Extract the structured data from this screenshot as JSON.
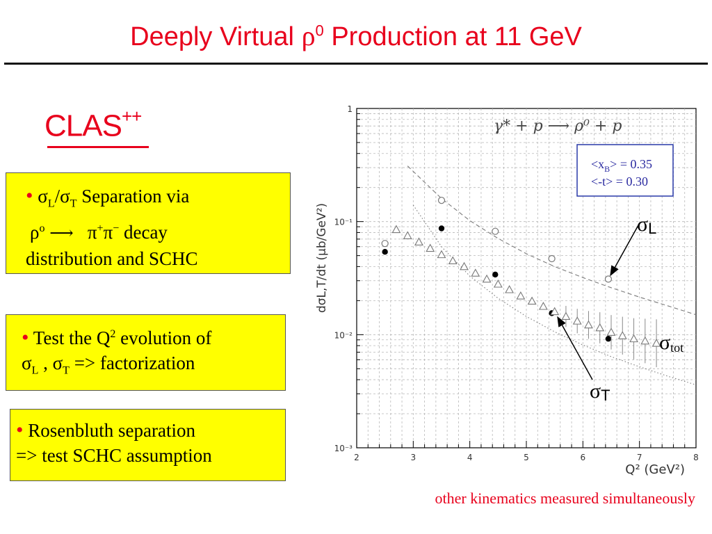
{
  "header": {
    "title_pre": "Deeply Virtual ",
    "title_rho": "ρ",
    "title_sup": "0",
    "title_post": " Production at 11 GeV"
  },
  "logo": {
    "text": "CLAS",
    "sup": "++"
  },
  "boxes": {
    "b1": {
      "sL": "σ",
      "L": "L",
      "slash": "/",
      "sT": "σ",
      "T": "T",
      "rest": " Separation via",
      "rho": "ρ",
      "o": "o",
      "arrow": "⟶",
      "pi1": "π",
      "plus": "+",
      "pi2": "π",
      "minus": "−",
      "decay": " decay",
      "line3": "distribution and SCHC"
    },
    "b2": {
      "pre": " Test the Q",
      "sup2": "2",
      "post": " evolution of",
      "sL": "σ",
      "L": "L",
      "comma": " , ",
      "sT": "σ",
      "T": "T",
      "fact": " => factorization"
    },
    "b3": {
      "line1": " Rosenbluth separation",
      "line2": "=> test SCHC assumption"
    },
    "bullet": "•"
  },
  "chart_data": {
    "type": "scatter",
    "title": "γ* + p ⟶ ρ⁰ + p",
    "xlabel": "Q² (GeV²)",
    "ylabel": "dσL,T/dt (μb/GeV²)",
    "xlim": [
      2,
      8
    ],
    "ylim": [
      0.001,
      1
    ],
    "log_y": true,
    "x_ticks": [
      "2",
      "3",
      "4",
      "5",
      "6",
      "7",
      "8"
    ],
    "y_ticks": [
      "1",
      "10⁻¹",
      "10⁻²",
      "10⁻³"
    ],
    "grid": true,
    "legend_box": {
      "line1": "<x",
      "sub1": "B",
      "line1b": "> = 0.35",
      "line2": "<-t>  = 0.30"
    },
    "series": [
      {
        "marker": "filled-circle",
        "color": "#000000",
        "x": [
          2.5,
          3.5,
          4.45,
          5.45,
          6.45
        ],
        "y": [
          0.054,
          0.087,
          0.034,
          0.0155,
          0.0092
        ]
      },
      {
        "marker": "open-circle",
        "color": "#777777",
        "x": [
          2.5,
          3.5,
          4.45,
          5.45,
          6.45
        ],
        "y": [
          0.064,
          0.154,
          0.082,
          0.047,
          0.031
        ]
      },
      {
        "marker": "open-triangle",
        "color": "#777777",
        "x": [
          2.7,
          2.9,
          3.1,
          3.3,
          3.5,
          3.7,
          3.9,
          4.1,
          4.3,
          4.5,
          4.7,
          4.9,
          5.1,
          5.3,
          5.5,
          5.7,
          5.9,
          6.1,
          6.3,
          6.5,
          6.7,
          6.9,
          7.1,
          7.3
        ],
        "y": [
          0.085,
          0.075,
          0.066,
          0.058,
          0.051,
          0.045,
          0.04,
          0.035,
          0.031,
          0.028,
          0.025,
          0.022,
          0.0198,
          0.0178,
          0.016,
          0.0145,
          0.0132,
          0.0122,
          0.0115,
          0.0105,
          0.0098,
          0.0092,
          0.0088,
          0.0084
        ]
      }
    ],
    "fit_lines": [
      {
        "name": "σL",
        "style": "dashed",
        "x": [
          2.9,
          3.5,
          4.0,
          4.5,
          5.0,
          5.5,
          6.0,
          6.5,
          7.0,
          7.5,
          8.0
        ],
        "y": [
          0.31,
          0.16,
          0.102,
          0.071,
          0.052,
          0.04,
          0.032,
          0.026,
          0.0215,
          0.018,
          0.015
        ]
      },
      {
        "name": "σT",
        "style": "dotted",
        "x": [
          3.0,
          3.5,
          4.0,
          4.5,
          5.0,
          5.5,
          6.0,
          6.5,
          7.0,
          7.5,
          8.0
        ],
        "y": [
          0.14,
          0.06,
          0.033,
          0.021,
          0.0145,
          0.0106,
          0.0081,
          0.0064,
          0.0052,
          0.0043,
          0.0036
        ]
      }
    ],
    "labels": {
      "sL": "σ",
      "L": "L",
      "stot": "σ",
      "tot": "tot",
      "sT": "σ",
      "T": "T"
    }
  },
  "caption": "other kinematics measured simultaneously"
}
